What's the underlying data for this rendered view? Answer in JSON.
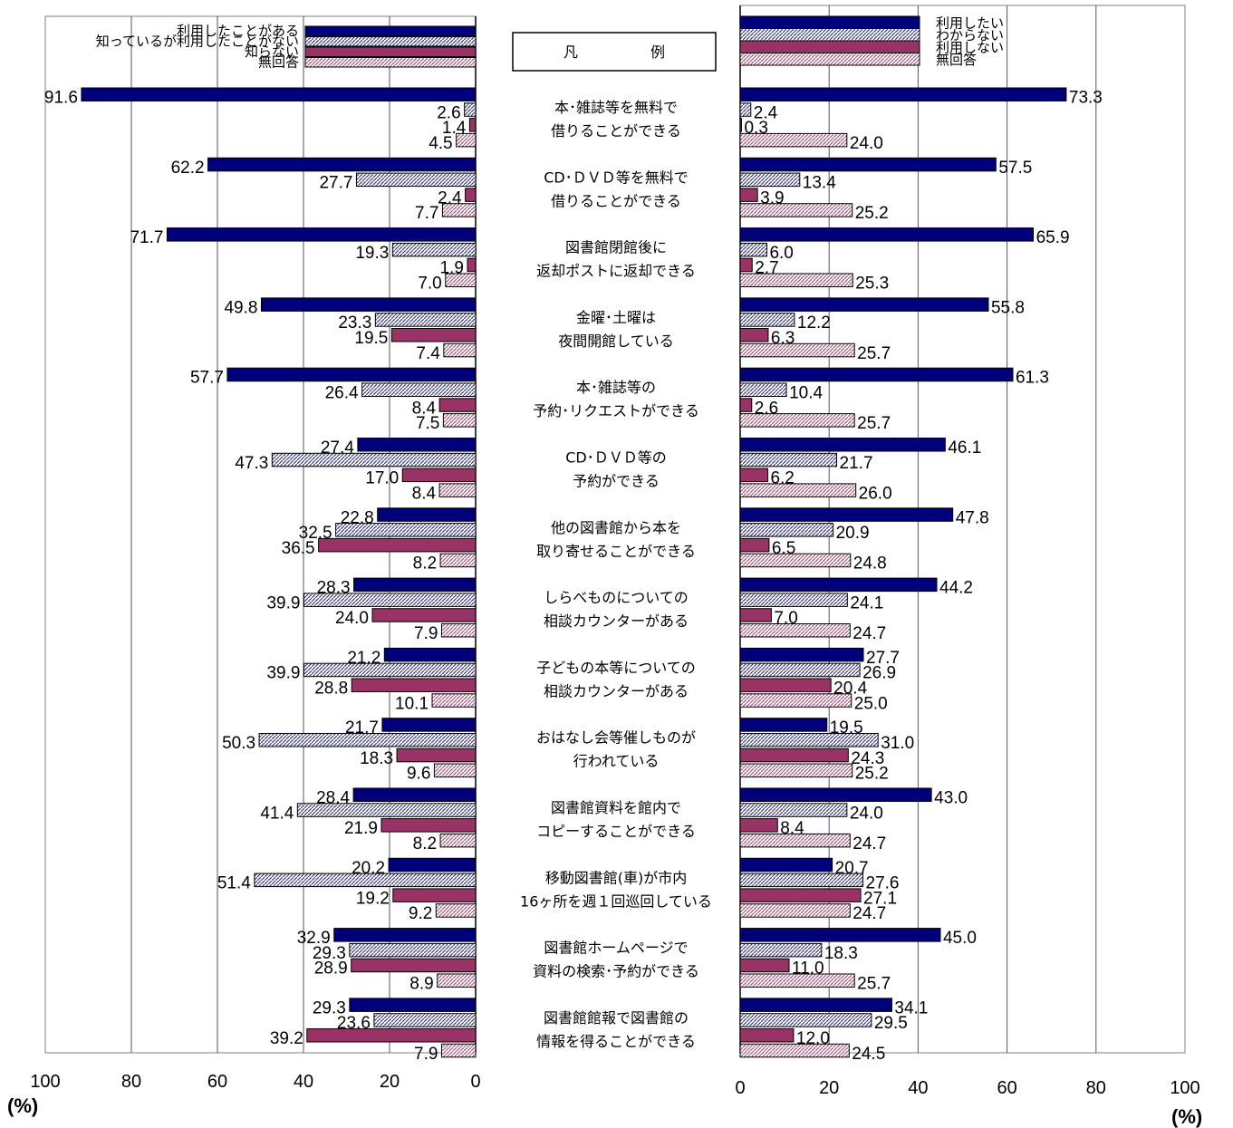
{
  "legend_box_label": "凡　　　　　例",
  "colors": {
    "left": [
      "#00007a",
      "#8c8ccc",
      "#993366",
      "#d98aa8"
    ],
    "right": [
      "#00007a",
      "#8c8ccc",
      "#993366",
      "#d98aa8"
    ]
  },
  "chart_data": [
    {
      "type": "bar",
      "orientation": "horizontal-reversed",
      "xlim": [
        0,
        100
      ],
      "xticks": [
        "100",
        "80",
        "60",
        "40",
        "20",
        "0"
      ],
      "unit": "(%)",
      "series": [
        {
          "name": "利用したことがある",
          "values": [
            91.6,
            62.2,
            71.7,
            49.8,
            57.7,
            27.4,
            22.8,
            28.3,
            21.2,
            21.7,
            28.4,
            20.2,
            32.9,
            29.3
          ]
        },
        {
          "name": "知っているが利用したことがない",
          "values": [
            2.6,
            27.7,
            19.3,
            23.3,
            26.4,
            47.3,
            32.5,
            39.9,
            39.9,
            50.3,
            41.4,
            51.4,
            29.3,
            23.6
          ]
        },
        {
          "name": "知らない",
          "values": [
            1.4,
            2.4,
            1.9,
            19.5,
            8.4,
            17.0,
            36.5,
            24.0,
            28.8,
            18.3,
            21.9,
            19.2,
            28.9,
            39.2
          ]
        },
        {
          "name": "無回答",
          "values": [
            4.5,
            7.7,
            7.0,
            7.4,
            7.5,
            8.4,
            8.2,
            7.9,
            10.1,
            9.6,
            8.2,
            9.2,
            8.9,
            7.9
          ]
        }
      ],
      "value_labels": [
        [
          "91.6",
          "2.6",
          "1.4",
          "4.5"
        ],
        [
          "62.2",
          "27.7",
          "2.4",
          "7.7"
        ],
        [
          "71.7",
          "19.3",
          "1.9",
          "7.0"
        ],
        [
          "49.8",
          "23.3",
          "19.5",
          "7.4"
        ],
        [
          "57.7",
          "26.4",
          "8.4",
          "7.5"
        ],
        [
          "27.4",
          "47.3",
          "17.0",
          "8.4"
        ],
        [
          "22.8",
          "32.5",
          "36.5",
          "8.2"
        ],
        [
          "28.3",
          "39.9",
          "24.0",
          "7.9"
        ],
        [
          "21.2",
          "39.9",
          "28.8",
          "10.1"
        ],
        [
          "21.7",
          "50.3",
          "18.3",
          "9.6"
        ],
        [
          "28.4",
          "41.4",
          "21.9",
          "8.2"
        ],
        [
          "20.2",
          "51.4",
          "19.2",
          "9.2"
        ],
        [
          "32.9",
          "29.3",
          "28.9",
          "8.9"
        ],
        [
          "29.3",
          "23.6",
          "39.2",
          "7.9"
        ]
      ]
    },
    {
      "type": "bar",
      "orientation": "horizontal",
      "xlim": [
        0,
        100
      ],
      "xticks": [
        "0",
        "20",
        "40",
        "60",
        "80",
        "100"
      ],
      "unit": "(%)",
      "series": [
        {
          "name": "利用したい",
          "values": [
            73.3,
            57.5,
            65.9,
            55.8,
            61.3,
            46.1,
            47.8,
            44.2,
            27.7,
            19.5,
            43.0,
            20.7,
            45.0,
            34.1
          ]
        },
        {
          "name": "わからない",
          "values": [
            2.4,
            13.4,
            6.0,
            12.2,
            10.4,
            21.7,
            20.9,
            24.1,
            26.9,
            31.0,
            24.0,
            27.6,
            18.3,
            29.5
          ]
        },
        {
          "name": "利用しない",
          "values": [
            0.3,
            3.9,
            2.7,
            6.3,
            2.6,
            6.2,
            6.5,
            7.0,
            20.4,
            24.3,
            8.4,
            27.1,
            11.0,
            12.0
          ]
        },
        {
          "name": "無回答",
          "values": [
            24.0,
            25.2,
            25.3,
            25.7,
            25.7,
            26.0,
            24.8,
            24.7,
            25.0,
            25.2,
            24.7,
            24.7,
            25.7,
            24.5
          ]
        }
      ],
      "value_labels": [
        [
          "73.3",
          "2.4",
          "0.3",
          "24.0"
        ],
        [
          "57.5",
          "13.4",
          "3.9",
          "25.2"
        ],
        [
          "65.9",
          "6.0",
          "2.7",
          "25.3"
        ],
        [
          "55.8",
          "12.2",
          "6.3",
          "25.7"
        ],
        [
          "61.3",
          "10.4",
          "2.6",
          "25.7"
        ],
        [
          "46.1",
          "21.7",
          "6.2",
          "26.0"
        ],
        [
          "47.8",
          "20.9",
          "6.5",
          "24.8"
        ],
        [
          "44.2",
          "24.1",
          "7.0",
          "24.7"
        ],
        [
          "27.7",
          "26.9",
          "20.4",
          "25.0"
        ],
        [
          "19.5",
          "31.0",
          "24.3",
          "25.2"
        ],
        [
          "43.0",
          "24.0",
          "8.4",
          "24.7"
        ],
        [
          "20.7",
          "27.6",
          "27.1",
          "24.7"
        ],
        [
          "45.0",
          "18.3",
          "11.0",
          "25.7"
        ],
        [
          "34.1",
          "29.5",
          "12.0",
          "24.5"
        ]
      ]
    }
  ],
  "categories": [
    [
      "本･雑誌等を無料で",
      "借りることができる"
    ],
    [
      "CD･ＤＶＤ等を無料で",
      "借りることができる"
    ],
    [
      "図書館閉館後に",
      "返却ポストに返却できる"
    ],
    [
      "金曜･土曜は",
      "夜間開館している"
    ],
    [
      "本･雑誌等の",
      "予約･リクエストができる"
    ],
    [
      "CD･ＤＶＤ等の",
      "予約ができる"
    ],
    [
      "他の図書館から本を",
      "取り寄せることができる"
    ],
    [
      "しらべものについての",
      "相談カウンターがある"
    ],
    [
      "子どもの本等についての",
      "相談カウンターがある"
    ],
    [
      "おはなし会等催しものが",
      "行われている"
    ],
    [
      "図書館資料を館内で",
      "コピーすることができる"
    ],
    [
      "移動図書館(車)が市内",
      "16ヶ所を週１回巡回している"
    ],
    [
      "図書館ホームページで",
      "資料の検索･予約ができる"
    ],
    [
      "図書館館報で図書館の",
      "情報を得ることができる"
    ]
  ]
}
